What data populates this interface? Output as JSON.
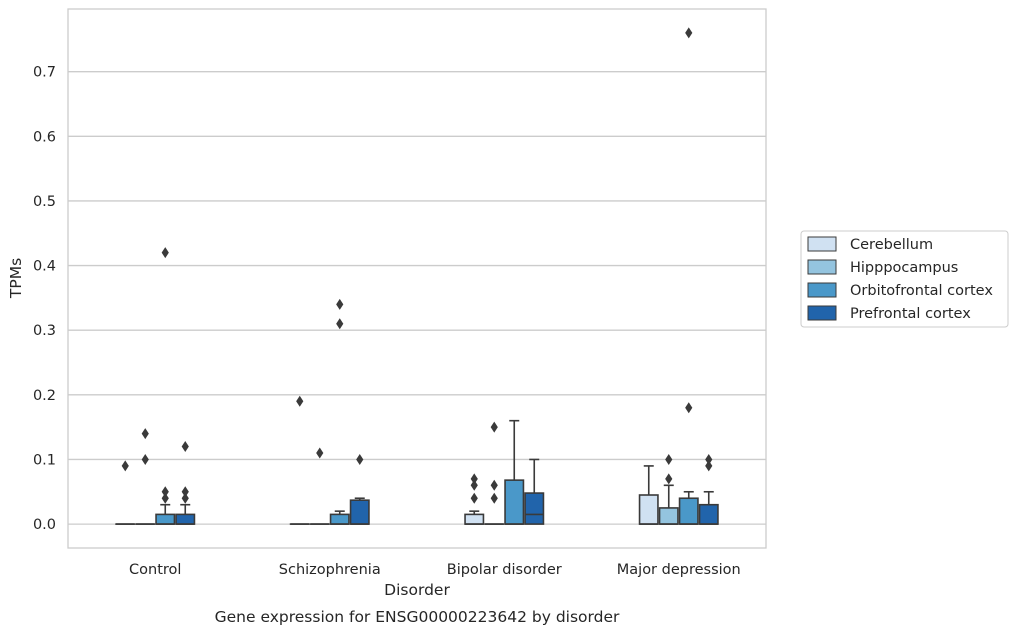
{
  "chart_data": {
    "type": "box",
    "title": "",
    "caption": "Gene expression for ENSG00000223642 by disorder",
    "xlabel": "Disorder",
    "ylabel": "TPMs",
    "ylim": [
      -0.037,
      0.797
    ],
    "yticks": [
      "0.0",
      "0.1",
      "0.2",
      "0.3",
      "0.4",
      "0.5",
      "0.6",
      "0.7"
    ],
    "ytick_values": [
      0.0,
      0.1,
      0.2,
      0.3,
      0.4,
      0.5,
      0.6,
      0.7
    ],
    "grid": "horizontal",
    "legend_position": "right",
    "categories": [
      "Control",
      "Schizophrenia",
      "Bipolar disorder",
      "Major depression"
    ],
    "series": [
      {
        "name": "Cerebellum",
        "color": "#d0e1f2",
        "boxes": [
          {
            "q1": 0,
            "median": 0,
            "q3": 0,
            "whisker_low": 0,
            "whisker_high": 0,
            "outliers": [
              0.09
            ]
          },
          {
            "q1": 0,
            "median": 0,
            "q3": 0,
            "whisker_low": 0,
            "whisker_high": 0,
            "outliers": [
              0.19
            ]
          },
          {
            "q1": 0,
            "median": 0,
            "q3": 0.015,
            "whisker_low": 0,
            "whisker_high": 0.02,
            "outliers": [
              0.04,
              0.06,
              0.07
            ]
          },
          {
            "q1": 0,
            "median": 0,
            "q3": 0.045,
            "whisker_low": 0,
            "whisker_high": 0.09,
            "outliers": []
          }
        ]
      },
      {
        "name": "Hipppocampus",
        "color": "#94c4df",
        "boxes": [
          {
            "q1": 0,
            "median": 0,
            "q3": 0,
            "whisker_low": 0,
            "whisker_high": 0,
            "outliers": [
              0.1,
              0.14
            ]
          },
          {
            "q1": 0,
            "median": 0,
            "q3": 0,
            "whisker_low": 0,
            "whisker_high": 0,
            "outliers": [
              0.11
            ]
          },
          {
            "q1": 0,
            "median": 0,
            "q3": 0,
            "whisker_low": 0,
            "whisker_high": 0,
            "outliers": [
              0.04,
              0.06,
              0.15
            ]
          },
          {
            "q1": 0,
            "median": 0,
            "q3": 0.025,
            "whisker_low": 0,
            "whisker_high": 0.06,
            "outliers": [
              0.07,
              0.1
            ]
          }
        ]
      },
      {
        "name": "Orbitofrontal cortex",
        "color": "#4a98c9",
        "boxes": [
          {
            "q1": 0,
            "median": 0,
            "q3": 0.015,
            "whisker_low": 0,
            "whisker_high": 0.03,
            "outliers": [
              0.04,
              0.05,
              0.42
            ]
          },
          {
            "q1": 0,
            "median": 0,
            "q3": 0.015,
            "whisker_low": 0,
            "whisker_high": 0.02,
            "outliers": [
              0.31,
              0.34
            ]
          },
          {
            "q1": 0,
            "median": 0,
            "q3": 0.068,
            "whisker_low": 0,
            "whisker_high": 0.16,
            "outliers": []
          },
          {
            "q1": 0,
            "median": 0,
            "q3": 0.04,
            "whisker_low": 0,
            "whisker_high": 0.05,
            "outliers": [
              0.18,
              0.76
            ]
          }
        ]
      },
      {
        "name": "Prefrontal cortex",
        "color": "#2164ab",
        "boxes": [
          {
            "q1": 0,
            "median": 0,
            "q3": 0.015,
            "whisker_low": 0,
            "whisker_high": 0.03,
            "outliers": [
              0.04,
              0.05,
              0.12
            ]
          },
          {
            "q1": 0,
            "median": 0,
            "q3": 0.037,
            "whisker_low": 0,
            "whisker_high": 0.04,
            "outliers": [
              0.1
            ]
          },
          {
            "q1": 0,
            "median": 0.015,
            "q3": 0.048,
            "whisker_low": 0,
            "whisker_high": 0.1,
            "outliers": []
          },
          {
            "q1": 0,
            "median": 0,
            "q3": 0.03,
            "whisker_low": 0,
            "whisker_high": 0.05,
            "outliers": [
              0.09,
              0.1
            ]
          }
        ]
      }
    ]
  }
}
